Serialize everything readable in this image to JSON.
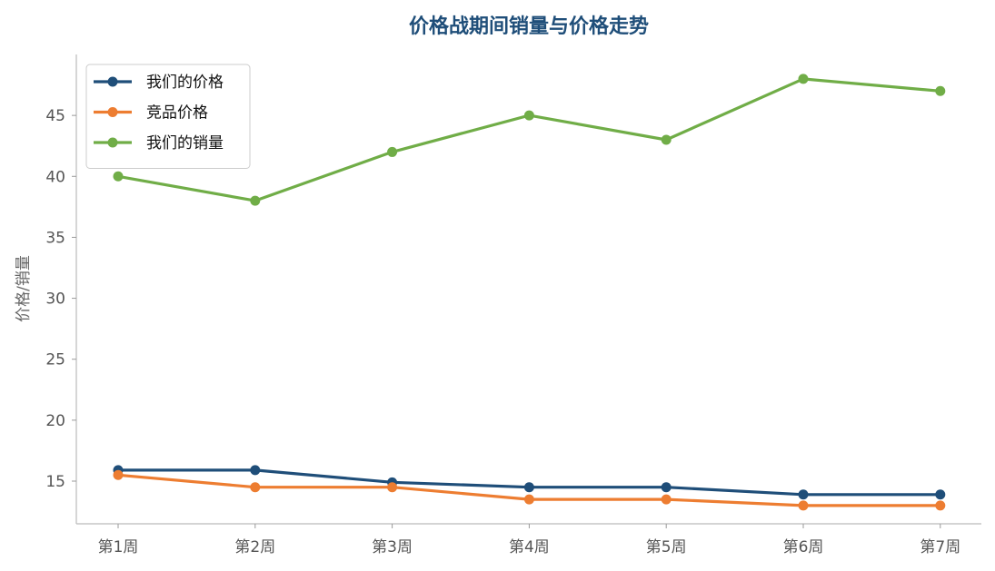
{
  "chart_data": {
    "type": "line",
    "title": "价格战期间销量与价格走势",
    "xlabel": "",
    "ylabel": "价格/销量",
    "categories": [
      "第1周",
      "第2周",
      "第3周",
      "第4周",
      "第5周",
      "第6周",
      "第7周"
    ],
    "ylim": [
      11.5,
      50
    ],
    "yticks": [
      15,
      20,
      25,
      30,
      35,
      40,
      45
    ],
    "grid": false,
    "legend_position": "top-left",
    "series": [
      {
        "name": "我们的价格",
        "color": "#1f4e79",
        "values": [
          15.9,
          15.9,
          14.9,
          14.5,
          14.5,
          13.9,
          13.9
        ]
      },
      {
        "name": "竞品价格",
        "color": "#ed7d31",
        "values": [
          15.5,
          14.5,
          14.5,
          13.5,
          13.5,
          13.0,
          13.0
        ]
      },
      {
        "name": "我们的销量",
        "color": "#70ad47",
        "values": [
          40,
          38,
          42,
          45,
          43,
          48,
          47
        ]
      }
    ]
  }
}
